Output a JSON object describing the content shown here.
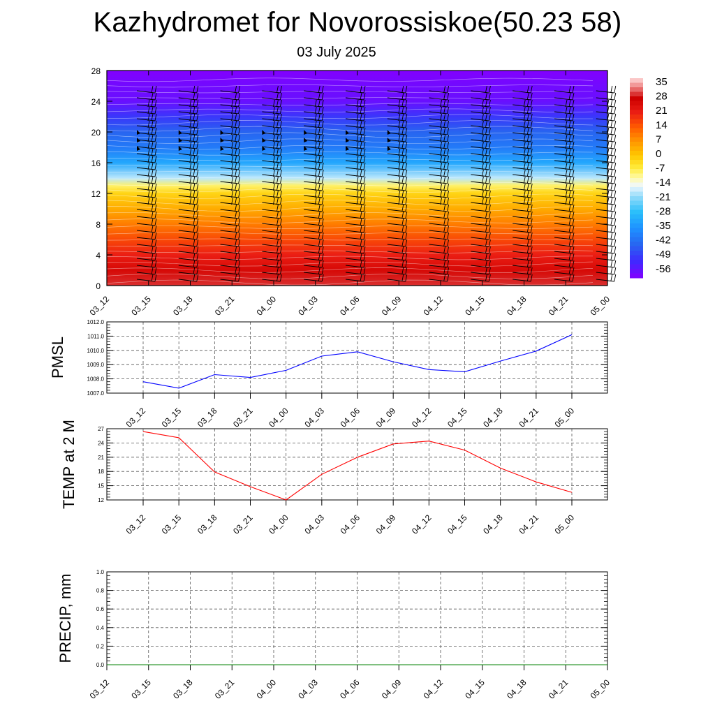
{
  "title": "Kazhydromet for Novorossiskoe(50.23 58)",
  "subtitle": "03 July 2025",
  "chart_data": [
    {
      "type": "heatmap",
      "y_ticks": [
        "0",
        "4",
        "8",
        "12",
        "16",
        "20",
        "24",
        "28"
      ],
      "ylim": [
        0,
        28
      ],
      "x_ticks": [
        "03_12",
        "03_15",
        "03_18",
        "03_21",
        "04_00",
        "04_03",
        "04_06",
        "04_09",
        "04_12",
        "04_15",
        "04_18",
        "04_21",
        "05_00"
      ],
      "colorbar": {
        "labels": [
          "35",
          "28",
          "21",
          "14",
          "7",
          "0",
          "-7",
          "-14",
          "-21",
          "-28",
          "-35",
          "-42",
          "-49",
          "-56"
        ],
        "range": [
          -60,
          38
        ]
      },
      "profile": {
        "level": [
          0,
          2,
          4,
          6,
          8,
          10,
          12,
          13,
          14,
          16,
          18,
          20,
          22,
          24,
          26,
          28
        ],
        "temperature": [
          30,
          26,
          21,
          16,
          10,
          4,
          -2,
          -8,
          -18,
          -32,
          -40,
          -44,
          -50,
          -57,
          -58,
          -60
        ]
      }
    },
    {
      "type": "line",
      "ylabel": "PMSL",
      "ylim": [
        1007.0,
        1012.0
      ],
      "y_ticks": [
        "1012.0",
        "1011.0",
        "1010.0",
        "1009.0",
        "1008.0",
        "1007.0"
      ],
      "categories": [
        "03_12",
        "03_15",
        "03_18",
        "03_21",
        "04_00",
        "04_03",
        "04_06",
        "04_09",
        "04_12",
        "04_15",
        "04_18",
        "04_21",
        "05_00"
      ],
      "series": [
        {
          "values": [
            1007.8,
            1007.35,
            1008.3,
            1008.1,
            1008.6,
            1009.6,
            1009.9,
            1009.2,
            1008.65,
            1008.5,
            1009.25,
            1009.95,
            1011.1
          ],
          "color": "#0000ff"
        }
      ]
    },
    {
      "type": "line",
      "ylabel": "TEMP at 2 M",
      "ylim": [
        12,
        27
      ],
      "y_ticks": [
        "27",
        "24",
        "21",
        "18",
        "15",
        "12"
      ],
      "categories": [
        "03_12",
        "03_15",
        "03_18",
        "03_21",
        "04_00",
        "04_03",
        "04_06",
        "04_09",
        "04_12",
        "04_15",
        "04_18",
        "04_21",
        "05_00"
      ],
      "series": [
        {
          "values": [
            26.4,
            25.1,
            17.9,
            14.8,
            12.0,
            17.4,
            21.0,
            23.8,
            24.4,
            22.5,
            18.7,
            15.8,
            13.6
          ],
          "color": "#ff0000"
        }
      ]
    },
    {
      "type": "line",
      "ylabel": "PRECIP, mm",
      "ylim": [
        0.0,
        1.0
      ],
      "y_ticks": [
        "1.0",
        "0.8",
        "0.6",
        "0.4",
        "0.2",
        "0.0"
      ],
      "categories": [
        "03_12",
        "03_15",
        "03_18",
        "03_21",
        "04_00",
        "04_03",
        "04_06",
        "04_09",
        "04_12",
        "04_15",
        "04_18",
        "04_21",
        "05_00"
      ],
      "series": [
        {
          "values": [
            0,
            0,
            0,
            0,
            0,
            0,
            0,
            0,
            0,
            0,
            0,
            0,
            0
          ],
          "color": "#008000"
        }
      ]
    }
  ]
}
